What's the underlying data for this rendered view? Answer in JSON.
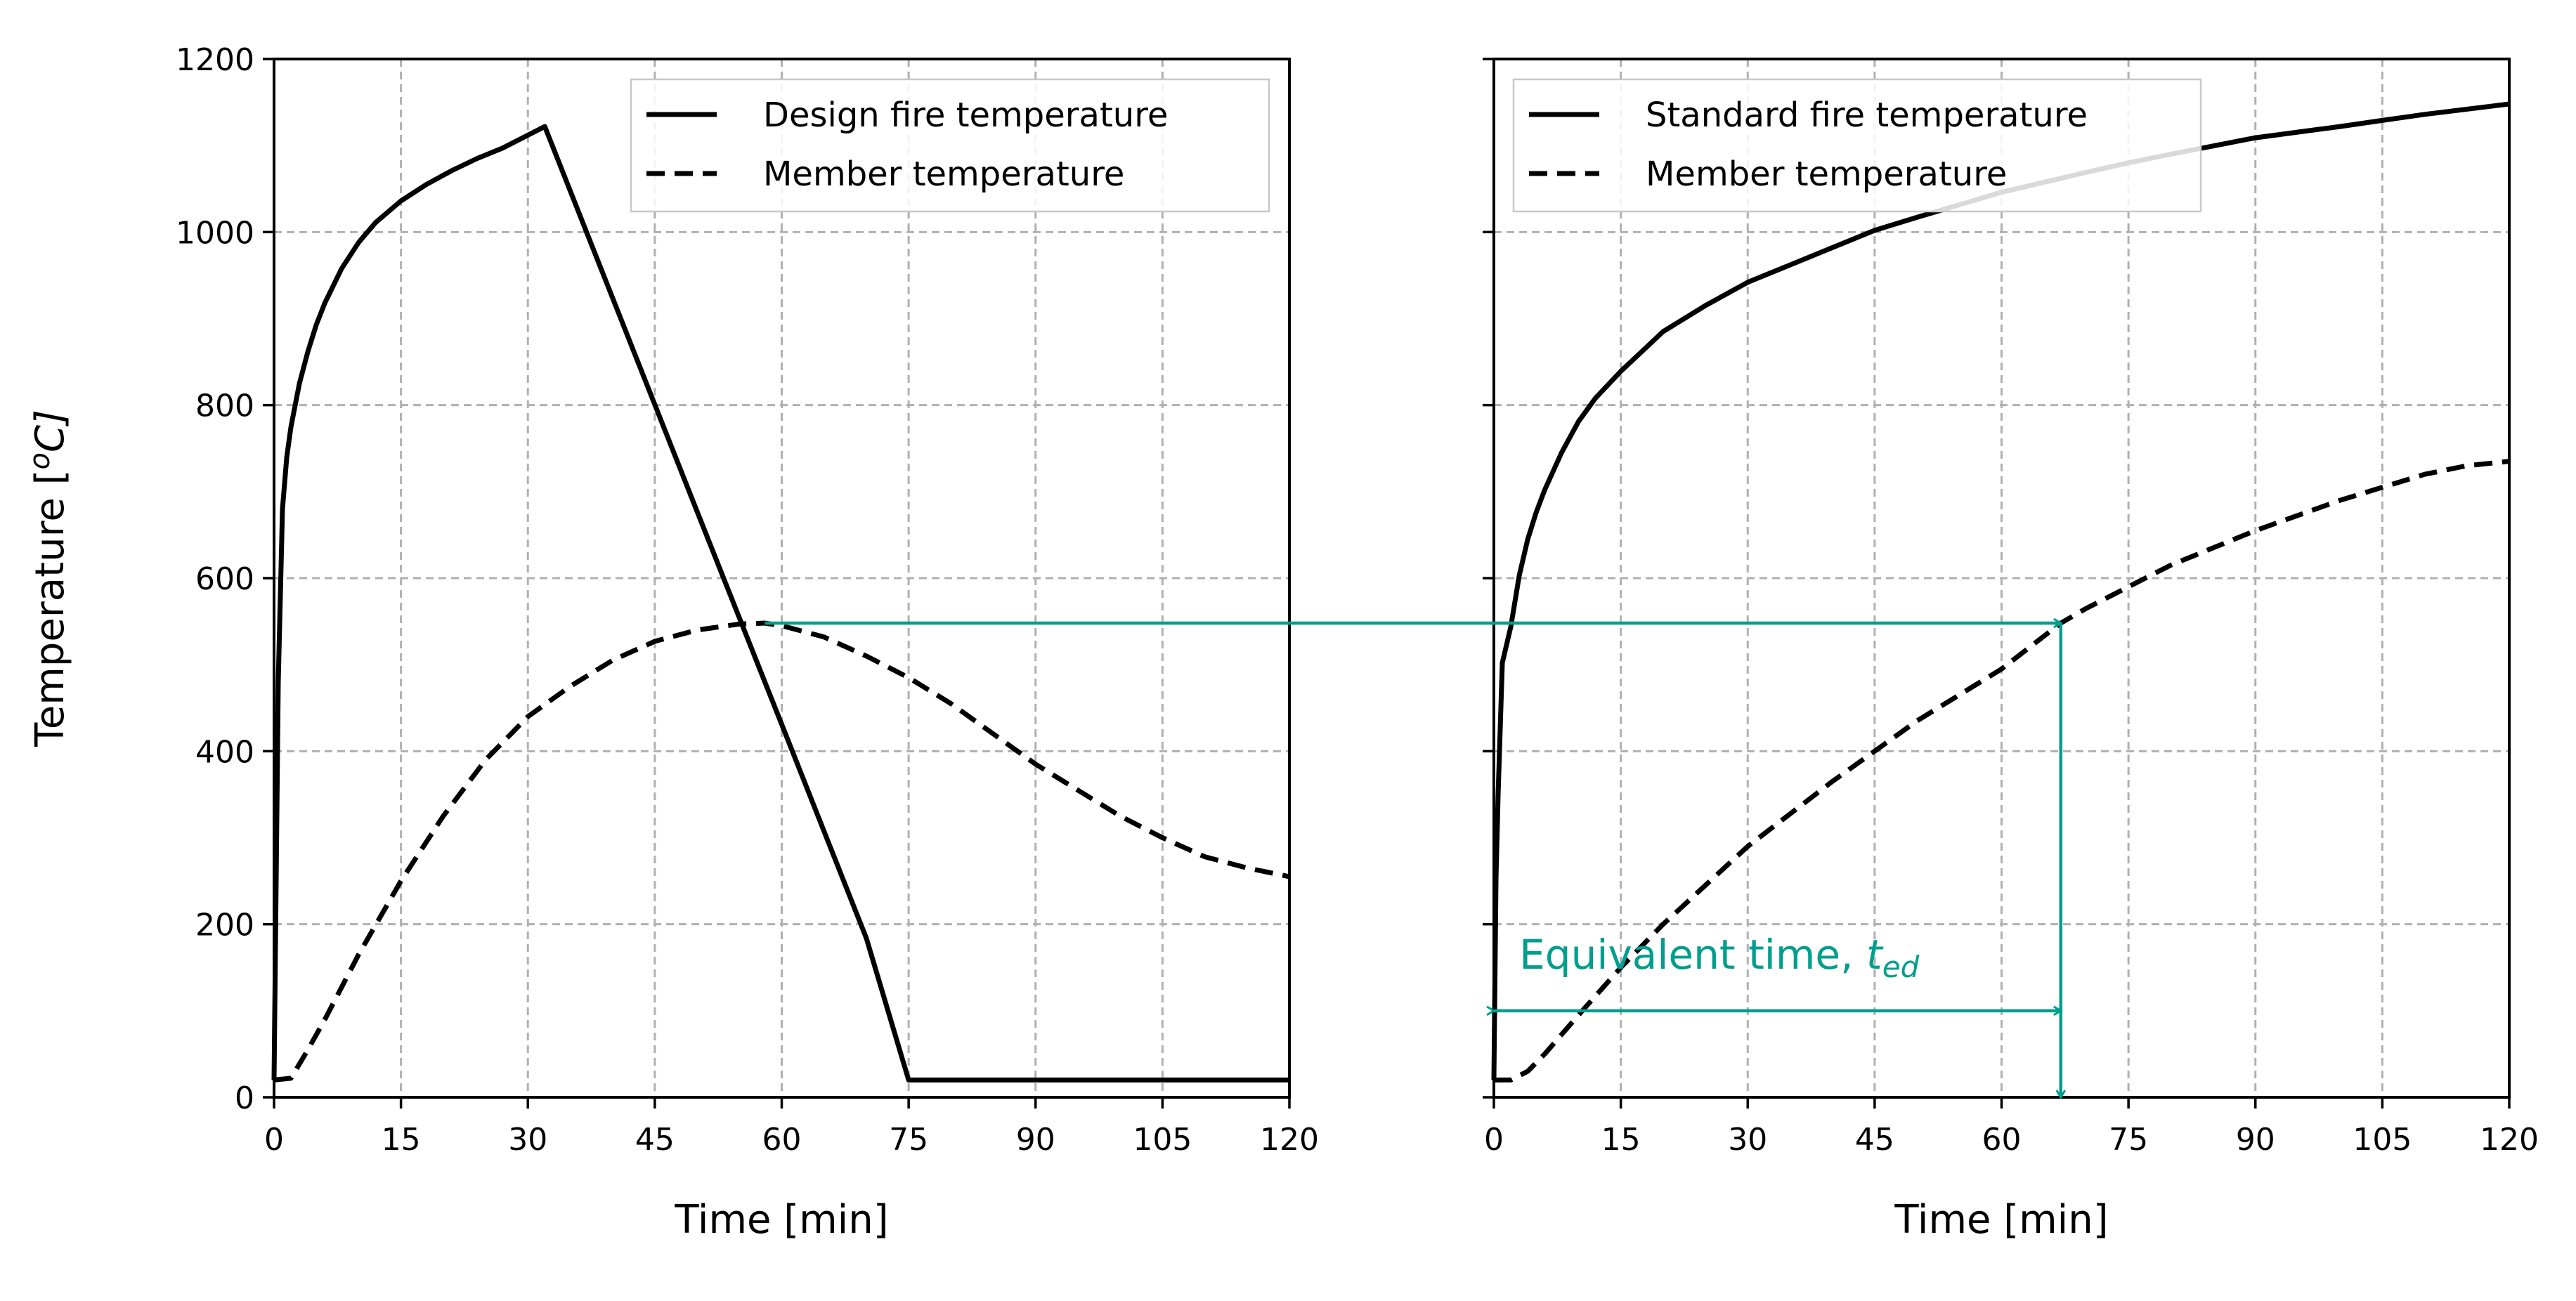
{
  "chart_data": [
    {
      "type": "line",
      "xlabel": "Time [min]",
      "ylabel": "Temperature [",
      "ylabel_unit": "o",
      "ylabel_tail": "C]",
      "xlim": [
        0,
        120
      ],
      "ylim": [
        0,
        1200
      ],
      "xticks": [
        0,
        15,
        30,
        45,
        60,
        75,
        90,
        105,
        120
      ],
      "yticks": [
        0,
        200,
        400,
        600,
        800,
        1000,
        1200
      ],
      "grid": true,
      "legend_position": "top-right",
      "series": [
        {
          "name": "Design fire temperature",
          "style": "solid",
          "color": "#000000",
          "x": [
            0,
            0.5,
            1,
            1.5,
            2,
            3,
            4,
            5,
            6,
            8,
            10,
            12,
            15,
            18,
            21,
            24,
            27,
            30,
            32,
            40,
            50,
            60,
            70,
            75,
            90,
            105,
            120
          ],
          "y": [
            20,
            480,
            680,
            740,
            775,
            825,
            862,
            893,
            918,
            958,
            988,
            1011,
            1036,
            1055,
            1071,
            1085,
            1097,
            1112,
            1122,
            924,
            677,
            431,
            184,
            20,
            20,
            20,
            20
          ]
        },
        {
          "name": "Member temperature",
          "style": "dashed",
          "color": "#000000",
          "x": [
            0,
            2,
            4,
            6,
            10,
            15,
            20,
            25,
            30,
            35,
            40,
            45,
            50,
            55,
            58,
            60,
            65,
            70,
            75,
            80,
            85,
            90,
            95,
            100,
            105,
            110,
            115,
            120
          ],
          "y": [
            20,
            22,
            55,
            90,
            165,
            250,
            325,
            390,
            440,
            475,
            505,
            527,
            540,
            547,
            548,
            545,
            532,
            510,
            485,
            455,
            420,
            385,
            355,
            325,
            300,
            278,
            265,
            255
          ]
        }
      ]
    },
    {
      "type": "line",
      "xlabel": "Time [min]",
      "xlim": [
        0,
        120
      ],
      "ylim": [
        0,
        1200
      ],
      "xticks": [
        0,
        15,
        30,
        45,
        60,
        75,
        90,
        105,
        120
      ],
      "yticks": [
        0,
        200,
        400,
        600,
        800,
        1000,
        1200
      ],
      "grid": true,
      "legend_position": "top-left",
      "series": [
        {
          "name": "Standard fire temperature",
          "style": "solid",
          "color": "#000000",
          "x": [
            0,
            0.25,
            0.5,
            1,
            2,
            3,
            4,
            5,
            6,
            8,
            10,
            12,
            15,
            20,
            25,
            30,
            40,
            45,
            50,
            60,
            70,
            75,
            80,
            90,
            100,
            105,
            110,
            120
          ],
          "y": [
            20,
            252,
            349,
            502,
            544,
            603,
            645,
            676,
            702,
            745,
            781,
            808,
            839,
            885,
            915,
            942,
            982,
            1002,
            1017,
            1046,
            1069,
            1080,
            1090,
            1109,
            1122,
            1129,
            1136,
            1148
          ]
        },
        {
          "name": "Member temperature",
          "style": "dashed",
          "color": "#000000",
          "x": [
            0,
            2,
            4,
            6,
            10,
            15,
            20,
            30,
            40,
            45,
            50,
            60,
            67,
            70,
            75,
            80,
            90,
            100,
            105,
            110,
            115,
            120
          ],
          "y": [
            20,
            20,
            30,
            50,
            95,
            150,
            200,
            290,
            365,
            400,
            435,
            495,
            548,
            565,
            590,
            615,
            655,
            690,
            705,
            720,
            730,
            735
          ]
        }
      ],
      "annotation": {
        "text": "Equivalent time, ",
        "symbol": "t",
        "subscript": "ed",
        "color": "#009E8E",
        "horizontal_level": 548,
        "from_x": 58,
        "to_x": 67,
        "span_y": 100
      }
    }
  ]
}
